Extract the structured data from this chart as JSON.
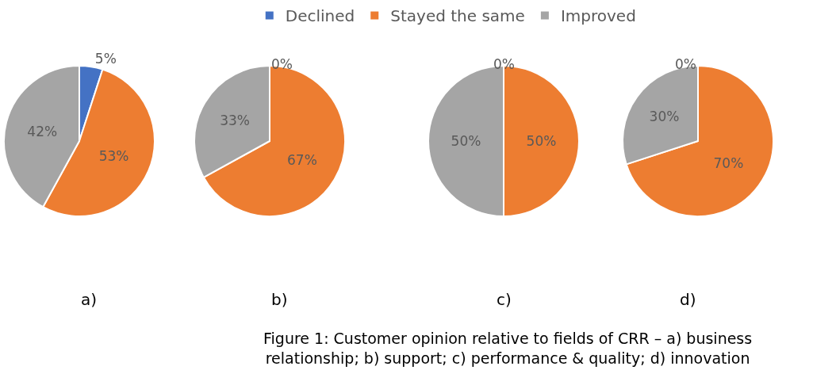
{
  "chart_data": [
    {
      "type": "pie",
      "categories": [
        "Declined",
        "Stayed the same",
        "Improved"
      ],
      "values": [
        5,
        53,
        42
      ],
      "value_labels": [
        "5%",
        "53%",
        "42%"
      ],
      "colors": [
        "#4472c4",
        "#ed7d31",
        "#a5a5a5"
      ],
      "legend": "top",
      "annotations": [
        "a)",
        "Figure 1: Customer opinion relative to fields of CRR – a) business relationship; b) support; c) performance & quality; d) innovation"
      ]
    },
    {
      "type": "pie",
      "categories": [
        null,
        null,
        null
      ],
      "values": [
        0,
        67,
        33
      ],
      "value_labels": [
        "0%",
        "67%",
        "33%"
      ],
      "colors": [
        "#4472c4",
        "#ed7d31",
        "#a5a5a5"
      ],
      "annotations": [
        "b)"
      ]
    },
    {
      "type": "pie",
      "categories": [
        null,
        null,
        null
      ],
      "values": [
        0,
        50,
        50
      ],
      "value_labels": [
        "0%",
        "50%",
        "50%"
      ],
      "colors": [
        "#4472c4",
        "#ed7d31",
        "#a5a5a5"
      ],
      "annotations": [
        "c)"
      ]
    },
    {
      "type": "pie",
      "categories": [
        null,
        null,
        null
      ],
      "values": [
        0,
        70,
        30
      ],
      "value_labels": [
        "0%",
        "70%",
        "30%"
      ],
      "colors": [
        "#4472c4",
        "#ed7d31",
        "#a5a5a5"
      ],
      "annotations": [
        "d)"
      ]
    }
  ]
}
